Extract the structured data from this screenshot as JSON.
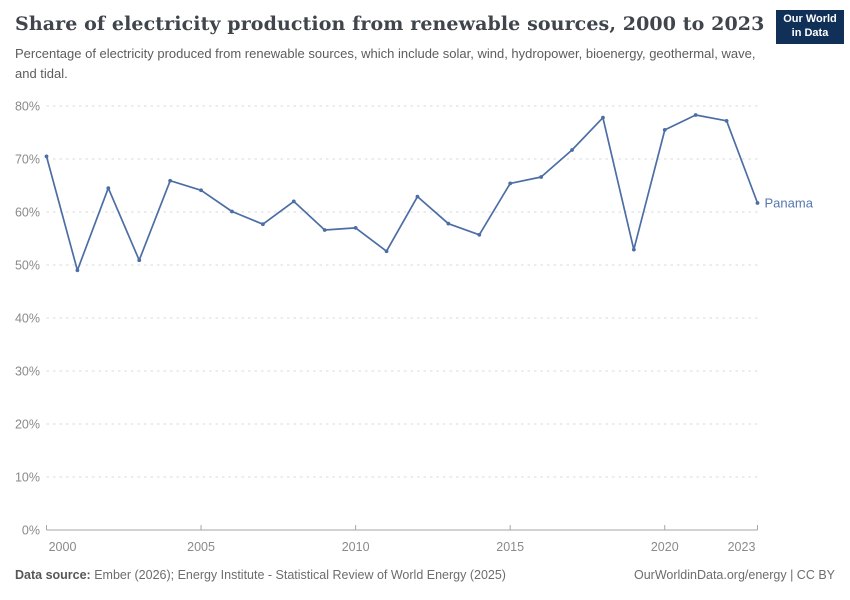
{
  "header": {
    "title": "Share of electricity production from renewable sources, 2000 to 2023",
    "subtitle": "Percentage of electricity produced from renewable sources, which include solar, wind, hydropower, bioenergy, geothermal, wave, and tidal.",
    "logo": {
      "line1": "Our World",
      "line2": "in Data",
      "bg_color": "#103057",
      "accent_color": "#c3312d"
    }
  },
  "footer": {
    "datasource_label": "Data source:",
    "datasource_text": " Ember (2026); Energy Institute - Statistical Review of World Energy (2025)",
    "link_text": "OurWorldinData.org/energy | CC BY"
  },
  "chart_data": {
    "type": "line",
    "title": "Share of electricity production from renewable sources, 2000 to 2023",
    "entity_label": "Panama",
    "line_color": "#4c6ea4",
    "label_color": "#5577ad",
    "grid_color": "#dadada",
    "axis_color": "#a5a5a5",
    "tick_text_color": "#8a8a8a",
    "grid": "horizontal-dashed",
    "legend_position": "end-of-line-label",
    "xlabel": "",
    "ylabel": "",
    "xlim": [
      2000,
      2023
    ],
    "ylim": [
      0,
      80
    ],
    "x": [
      2000,
      2001,
      2002,
      2003,
      2004,
      2005,
      2006,
      2007,
      2008,
      2009,
      2010,
      2011,
      2012,
      2013,
      2014,
      2015,
      2016,
      2017,
      2018,
      2019,
      2020,
      2021,
      2022,
      2023
    ],
    "series": [
      {
        "name": "Panama",
        "values": [
          70.5,
          49.0,
          64.5,
          50.9,
          65.9,
          64.1,
          60.1,
          57.7,
          62.0,
          56.6,
          57.0,
          52.6,
          62.9,
          57.8,
          55.7,
          65.4,
          66.6,
          71.7,
          77.8,
          52.9,
          75.5,
          78.3,
          77.2,
          61.7
        ]
      }
    ],
    "xticks": [
      2000,
      2005,
      2010,
      2015,
      2020,
      2023
    ],
    "xtick_labels": [
      "2000",
      "2005",
      "2010",
      "2015",
      "2020",
      "2023"
    ],
    "yticks": [
      0,
      10,
      20,
      30,
      40,
      50,
      60,
      70,
      80
    ],
    "ytick_labels": [
      "0%",
      "10%",
      "20%",
      "30%",
      "40%",
      "50%",
      "60%",
      "70%",
      "80%"
    ]
  }
}
